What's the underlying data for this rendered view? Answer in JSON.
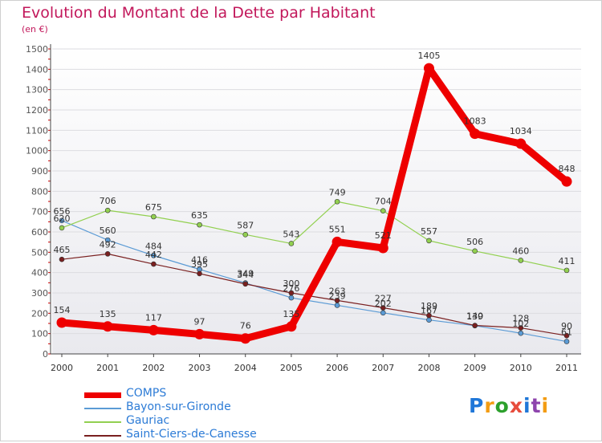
{
  "title": "Evolution du Montant de la Dette par Habitant",
  "subtitle": "(en €)",
  "logo": "Proxiti",
  "chart_data": {
    "type": "line",
    "title": "Evolution du Montant de la Dette par Habitant",
    "subtitle": "(en €)",
    "xlabel": "",
    "ylabel": "",
    "x": [
      "2000",
      "2001",
      "2002",
      "2003",
      "2004",
      "2005",
      "2006",
      "2007",
      "2008",
      "2009",
      "2010",
      "2011"
    ],
    "ylim": [
      0,
      1500
    ],
    "yticks": [
      0,
      100,
      200,
      300,
      400,
      500,
      600,
      700,
      800,
      900,
      1000,
      1100,
      1200,
      1300,
      1400,
      1500
    ],
    "grid": true,
    "legend_position": "bottom-left",
    "series": [
      {
        "name": "COMPS",
        "color": "#ee0000",
        "values": [
          154,
          135,
          117,
          97,
          76,
          135,
          551,
          521,
          1405,
          1083,
          1034,
          848
        ]
      },
      {
        "name": "Bayon-sur-Gironde",
        "color": "#5b9bd5",
        "values": [
          656,
          560,
          484,
          416,
          349,
          276,
          239,
          202,
          167,
          139,
          102,
          61
        ]
      },
      {
        "name": "Gauriac",
        "color": "#92d050",
        "values": [
          620,
          706,
          675,
          635,
          587,
          543,
          749,
          704,
          557,
          506,
          460,
          411
        ]
      },
      {
        "name": "Saint-Ciers-de-Canesse",
        "color": "#7a2020",
        "values": [
          465,
          492,
          442,
          395,
          344,
          300,
          263,
          227,
          189,
          140,
          128,
          90
        ]
      }
    ]
  }
}
